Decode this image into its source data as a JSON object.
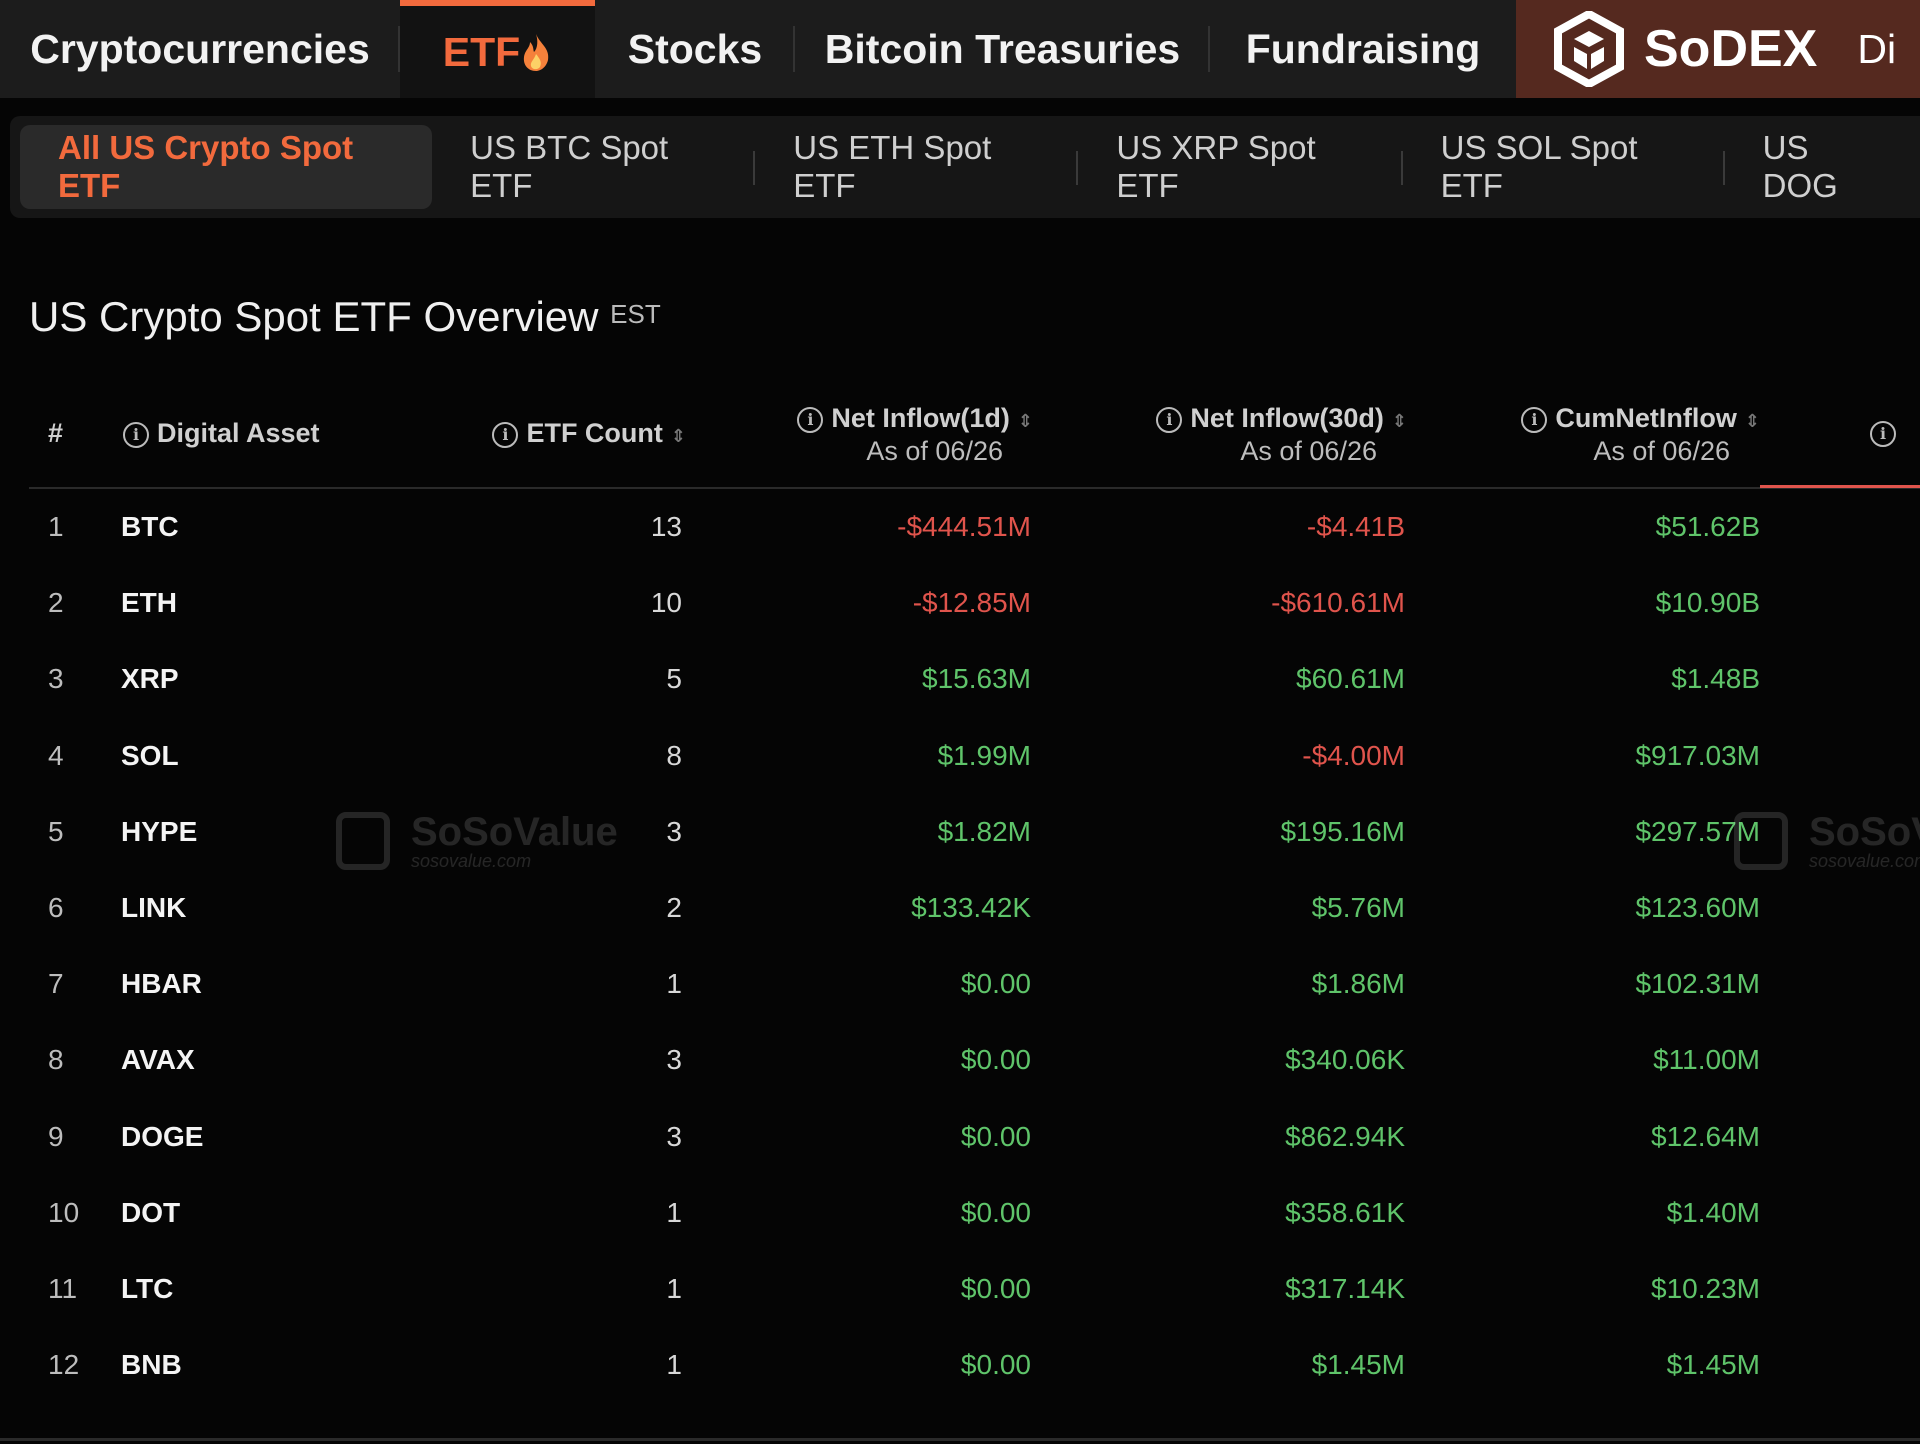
{
  "nav": {
    "tabs": [
      "Cryptocurrencies",
      "ETF",
      "Stocks",
      "Bitcoin Treasuries",
      "Fundraising"
    ],
    "brand": "SoDEX",
    "cut": "Di"
  },
  "subtabs": [
    "All US Crypto Spot ETF",
    "US BTC Spot ETF",
    "US ETH Spot ETF",
    "US XRP Spot ETF",
    "US SOL Spot ETF",
    "US DOG"
  ],
  "title": "US Crypto Spot ETF Overview",
  "title_note": "EST",
  "table": {
    "headers": [
      "#",
      "Digital Asset",
      "ETF Count",
      "Net Inflow(1d)",
      "Net Inflow(30d)",
      "CumNetInflow"
    ],
    "subheaders": [
      "As of 06/26",
      "As of 06/26",
      "As of 06/26"
    ],
    "rows": [
      [
        "1",
        "BTC",
        "13",
        "-$444.51M",
        "-$4.41B",
        "$51.62B"
      ],
      [
        "2",
        "ETH",
        "10",
        "-$12.85M",
        "-$610.61M",
        "$10.90B"
      ],
      [
        "3",
        "XRP",
        "5",
        "$15.63M",
        "$60.61M",
        "$1.48B"
      ],
      [
        "4",
        "SOL",
        "8",
        "$1.99M",
        "-$4.00M",
        "$917.03M"
      ],
      [
        "5",
        "HYPE",
        "3",
        "$1.82M",
        "$195.16M",
        "$297.57M"
      ],
      [
        "6",
        "LINK",
        "2",
        "$133.42K",
        "$5.76M",
        "$123.60M"
      ],
      [
        "7",
        "HBAR",
        "1",
        "$0.00",
        "$1.86M",
        "$102.31M"
      ],
      [
        "8",
        "AVAX",
        "3",
        "$0.00",
        "$340.06K",
        "$11.00M"
      ],
      [
        "9",
        "DOGE",
        "3",
        "$0.00",
        "$862.94K",
        "$12.64M"
      ],
      [
        "10",
        "DOT",
        "1",
        "$0.00",
        "$358.61K",
        "$1.40M"
      ],
      [
        "11",
        "LTC",
        "1",
        "$0.00",
        "$317.14K",
        "$10.23M"
      ],
      [
        "12",
        "BNB",
        "1",
        "$0.00",
        "$1.45M",
        "$1.45M"
      ]
    ]
  },
  "watermark": {
    "name": "SoSoValue",
    "url": "sosovalue.com"
  }
}
